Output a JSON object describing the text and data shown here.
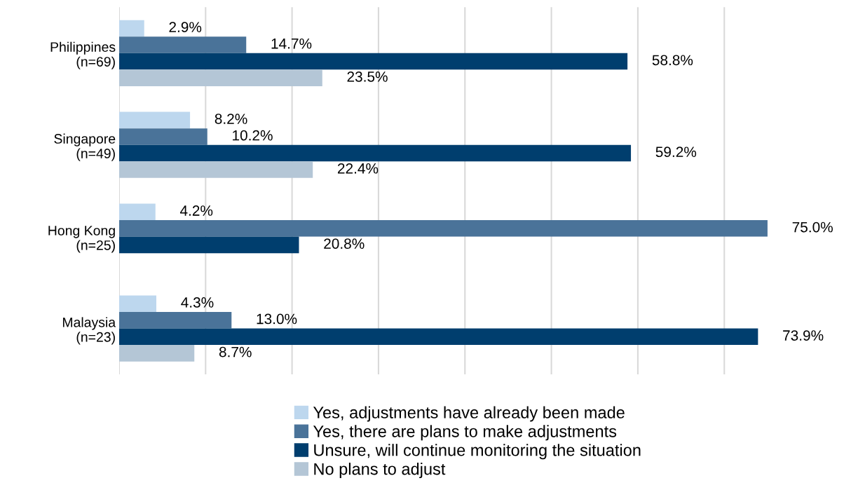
{
  "chart_data": {
    "type": "bar",
    "orientation": "horizontal",
    "categories": [
      "Philippines\n(n=69)",
      "Singapore\n(n=49)",
      "Hong Kong\n(n=25)",
      "Malaysia\n(n=23)"
    ],
    "series": [
      {
        "name": "Yes, adjustments have already been made",
        "color": "#bdd7ee",
        "values": [
          2.9,
          8.2,
          4.2,
          4.3
        ],
        "value_labels": [
          "2.9%",
          "8.2%",
          "4.2%",
          "4.3%"
        ]
      },
      {
        "name": "Yes, there are plans to make adjustments",
        "color": "#4a7399",
        "values": [
          14.7,
          10.2,
          75.0,
          13.0
        ],
        "value_labels": [
          "14.7%",
          "10.2%",
          "75.0%",
          "13.0%"
        ]
      },
      {
        "name": "Unsure, will continue monitoring the situation",
        "color": "#003e6e",
        "values": [
          58.8,
          59.2,
          20.8,
          73.9
        ],
        "value_labels": [
          "58.8%",
          "59.2%",
          "20.8%",
          "73.9%"
        ]
      },
      {
        "name": "No plans to adjust",
        "color": "#b4c6d6",
        "values": [
          23.5,
          22.4,
          null,
          8.7
        ],
        "value_labels": [
          "23.5%",
          "22.4%",
          null,
          "8.7%"
        ]
      }
    ],
    "grid": "x",
    "tick_labels": "y",
    "legend": "bottom"
  }
}
